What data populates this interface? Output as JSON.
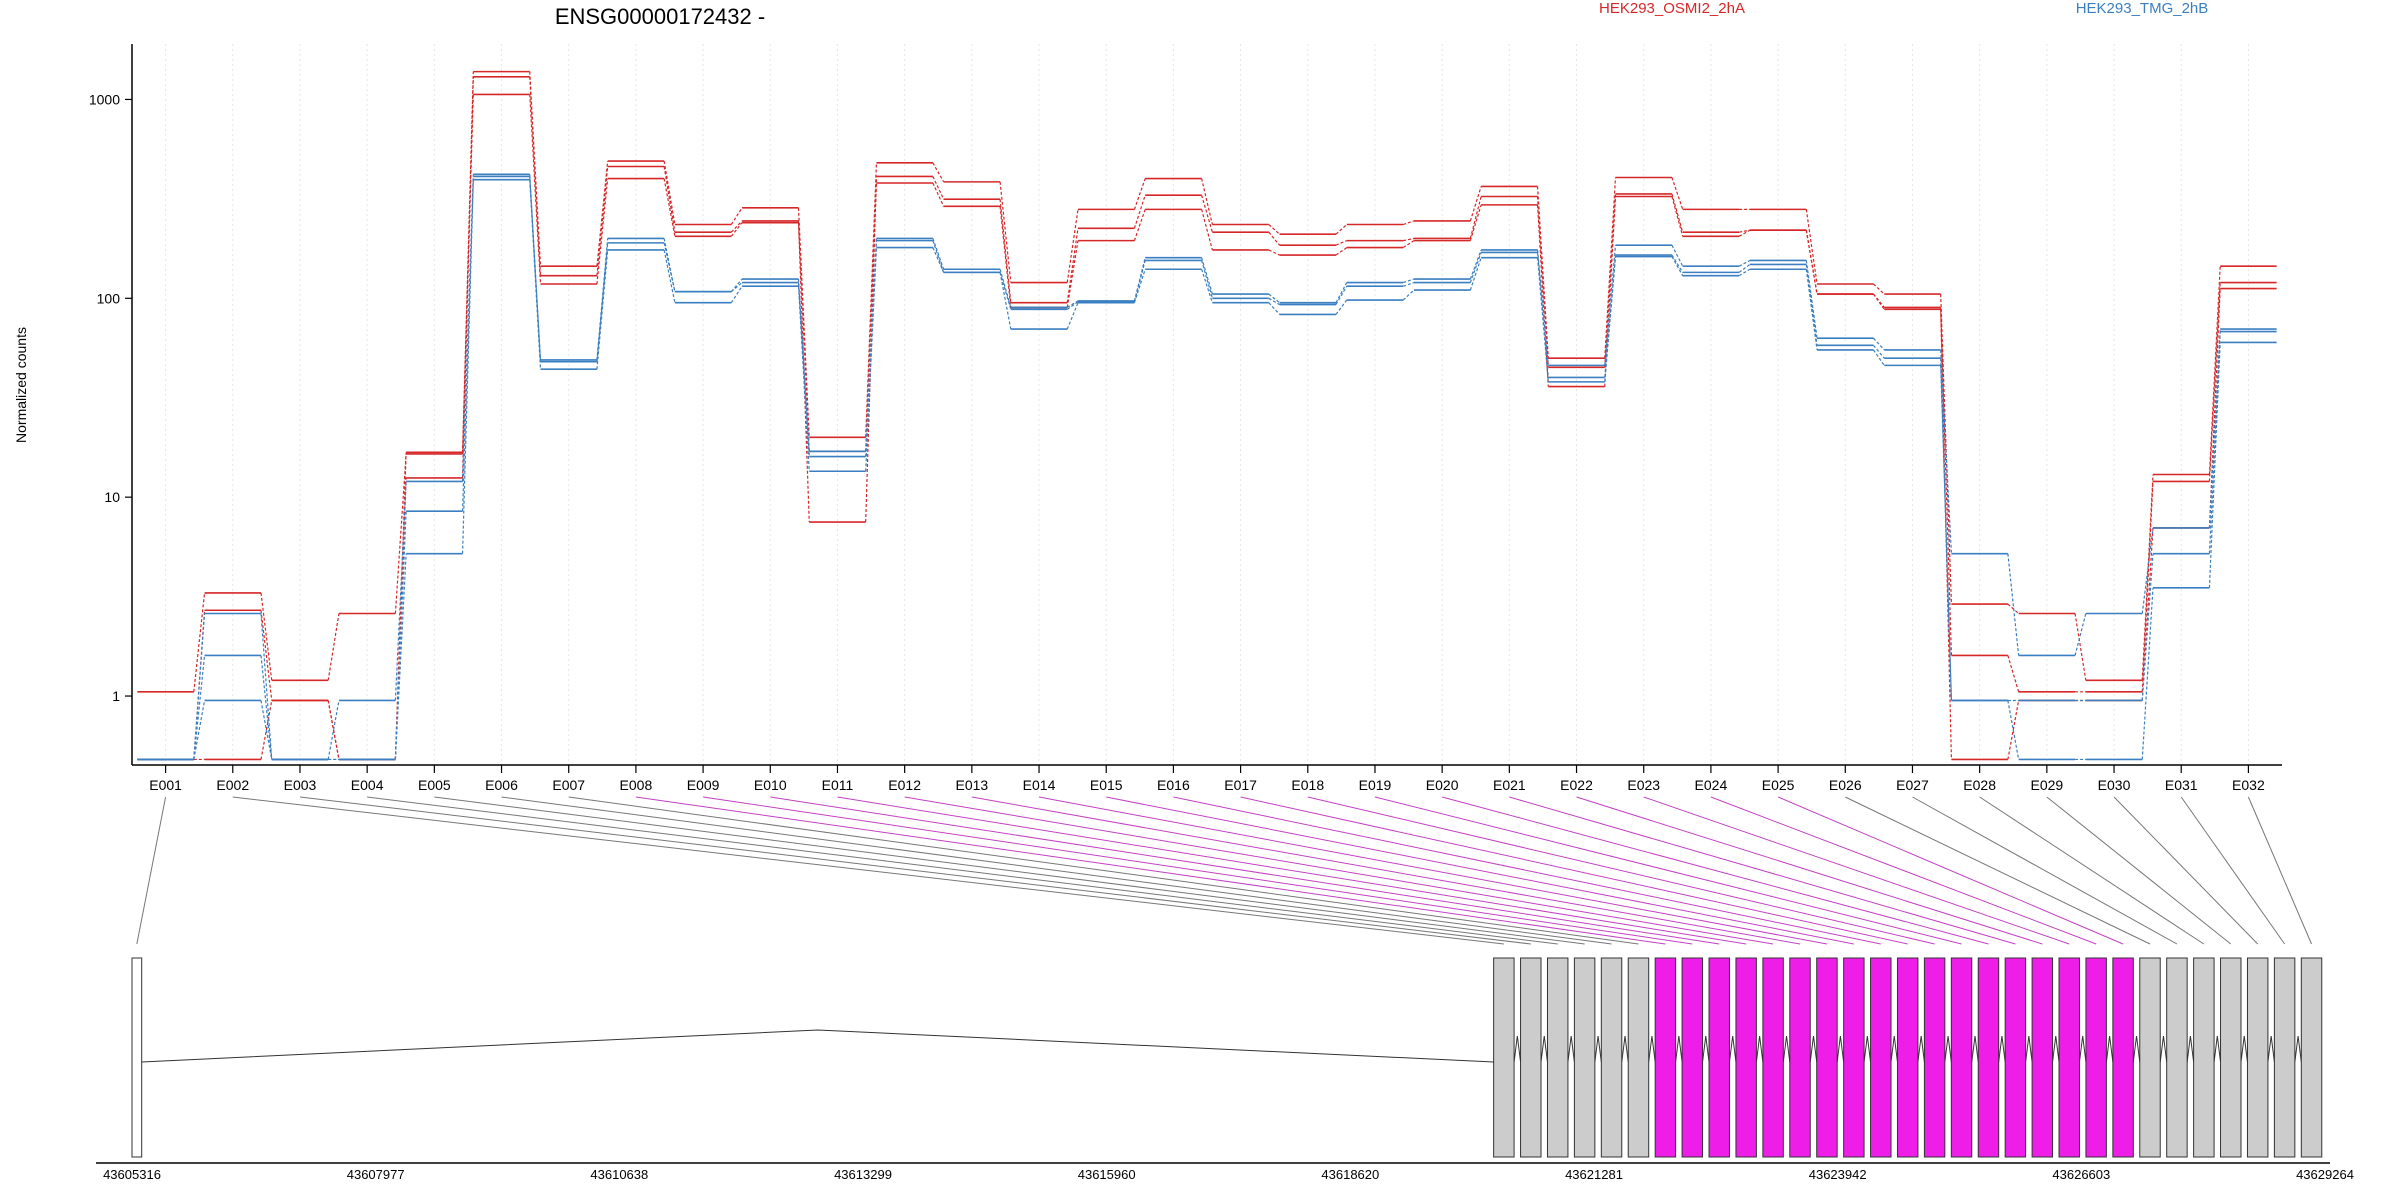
{
  "chart_data": {
    "type": "line",
    "title": "ENSG00000172432 -",
    "ylabel": "Normalized counts",
    "y_scale": "log",
    "ylim": [
      0.45,
      1900
    ],
    "y_ticks": [
      1,
      10,
      100,
      1000
    ],
    "y_tick_labels": [
      "1",
      "10",
      "100",
      "1000"
    ],
    "categories": [
      "E001",
      "E002",
      "E003",
      "E004",
      "E005",
      "E006",
      "E007",
      "E008",
      "E009",
      "E010",
      "E011",
      "E012",
      "E013",
      "E014",
      "E015",
      "E016",
      "E017",
      "E018",
      "E019",
      "E020",
      "E021",
      "E022",
      "E023",
      "E024",
      "E025",
      "E026",
      "E027",
      "E028",
      "E029",
      "E030",
      "E031",
      "E032"
    ],
    "legend": [
      {
        "label": "HEK293_OSMI2_2hA",
        "color": "#d62728"
      },
      {
        "label": "HEK293_TMG_2hB",
        "color": "#3a7fc1"
      }
    ],
    "series": [
      {
        "group": "HEK293_OSMI2_2hA",
        "color": "#d62728",
        "values": [
          1.05,
          3.3,
          1.2,
          2.6,
          16.5,
          1380,
          145,
          490,
          235,
          285,
          20,
          480,
          385,
          120,
          280,
          400,
          235,
          210,
          235,
          245,
          365,
          50,
          405,
          280,
          280,
          118,
          105,
          2.9,
          2.6,
          1.2,
          13,
          145
        ]
      },
      {
        "group": "HEK293_OSMI2_2hA",
        "color": "#d62728",
        "values": [
          0.48,
          2.7,
          0.95,
          0.48,
          12.5,
          1300,
          130,
          460,
          215,
          245,
          7.5,
          410,
          315,
          95,
          225,
          330,
          215,
          185,
          195,
          200,
          325,
          45,
          335,
          215,
          220,
          105,
          90,
          1.6,
          1.05,
          1.05,
          12,
          120
        ]
      },
      {
        "group": "HEK293_OSMI2_2hA",
        "color": "#d62728",
        "values": [
          0.48,
          0.48,
          0.95,
          0.48,
          16.8,
          1060,
          118,
          400,
          205,
          240,
          17,
          380,
          290,
          90,
          195,
          280,
          175,
          165,
          180,
          195,
          295,
          36,
          325,
          205,
          220,
          105,
          88,
          0.48,
          0.95,
          0.95,
          7,
          112
        ]
      },
      {
        "group": "HEK293_TMG_2hB",
        "color": "#3a7fc1",
        "values": [
          0.48,
          1.6,
          0.48,
          0.95,
          12,
          420,
          49,
          200,
          108,
          125,
          17,
          200,
          140,
          90,
          97,
          160,
          105,
          95,
          120,
          125,
          175,
          46,
          185,
          145,
          155,
          63,
          55,
          5.2,
          1.6,
          2.6,
          7,
          70
        ]
      },
      {
        "group": "HEK293_TMG_2hB",
        "color": "#3a7fc1",
        "values": [
          0.48,
          2.6,
          0.48,
          0.48,
          8.5,
          410,
          48,
          190,
          108,
          120,
          16,
          195,
          135,
          88,
          96,
          155,
          100,
          93,
          115,
          120,
          170,
          40,
          165,
          135,
          148,
          58,
          50,
          0.95,
          0.95,
          0.95,
          5.2,
          68
        ]
      },
      {
        "group": "HEK293_TMG_2hB",
        "color": "#3a7fc1",
        "values": [
          0.48,
          0.95,
          0.48,
          0.48,
          5.2,
          395,
          44,
          175,
          95,
          115,
          13.5,
          180,
          135,
          70,
          95,
          140,
          95,
          83,
          98,
          110,
          160,
          38,
          162,
          130,
          140,
          55,
          46,
          0.95,
          0.48,
          0.48,
          3.5,
          60
        ]
      }
    ],
    "gene_model": {
      "coordinate_ticks": [
        "43605316",
        "43607977",
        "43610638",
        "43613299",
        "43615960",
        "43618620",
        "43621281",
        "43623942",
        "43626603",
        "43629264"
      ],
      "coordinate_range": [
        43605316,
        43629264
      ],
      "exon_start": 43620150,
      "exon_end": 43629264,
      "first_exon": {
        "start": 43605316,
        "end": 43605400
      },
      "highlighted_exons": [
        "E008",
        "E009",
        "E010",
        "E011",
        "E012",
        "E013",
        "E014",
        "E015",
        "E016",
        "E017",
        "E018",
        "E019",
        "E020",
        "E021",
        "E022",
        "E023",
        "E024",
        "E025"
      ],
      "colors": {
        "exon": "#cccccc",
        "highlight": "#ee1de8",
        "connector_highlight": "#c341c3",
        "connector": "#777777"
      }
    }
  }
}
